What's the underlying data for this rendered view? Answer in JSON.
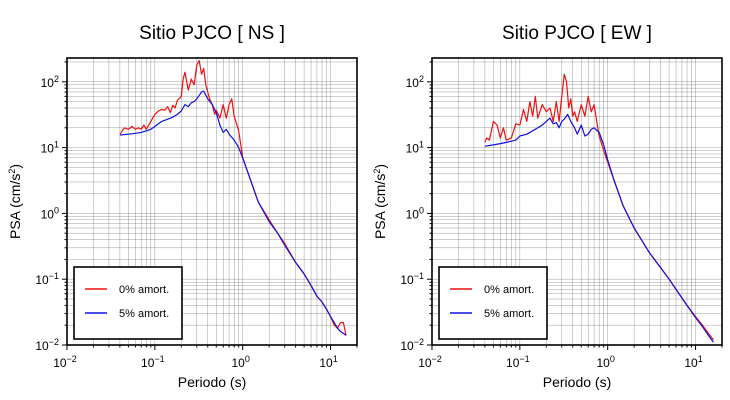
{
  "chart_data": [
    {
      "type": "line",
      "title": "Sitio PJCO [ NS ]",
      "xlabel": "Periodo (s)",
      "ylabel_main": "PSA (cm/s",
      "ylabel_sup": "2",
      "ylabel_tail": ")",
      "x_scale": "log",
      "y_scale": "log",
      "xlim": [
        0.01,
        20
      ],
      "ylim": [
        0.01,
        230
      ],
      "grid": true,
      "legend": "bottom-left",
      "x_ticks": [
        {
          "base": "10",
          "exp": "−2",
          "value": 0.01
        },
        {
          "base": "10",
          "exp": "−1",
          "value": 0.1
        },
        {
          "base": "10",
          "exp": "0",
          "value": 1
        },
        {
          "base": "10",
          "exp": "1",
          "value": 10
        }
      ],
      "y_ticks": [
        {
          "base": "10",
          "exp": "−2",
          "value": 0.01
        },
        {
          "base": "10",
          "exp": "−1",
          "value": 0.1
        },
        {
          "base": "10",
          "exp": "0",
          "value": 1
        },
        {
          "base": "10",
          "exp": "1",
          "value": 10
        },
        {
          "base": "10",
          "exp": "2",
          "value": 100
        }
      ],
      "series": [
        {
          "name": "0% amort.",
          "color": "#ee1111",
          "x": [
            0.04,
            0.045,
            0.05,
            0.055,
            0.06,
            0.065,
            0.07,
            0.075,
            0.08,
            0.09,
            0.1,
            0.11,
            0.12,
            0.13,
            0.14,
            0.15,
            0.16,
            0.17,
            0.18,
            0.2,
            0.21,
            0.22,
            0.24,
            0.26,
            0.28,
            0.3,
            0.32,
            0.34,
            0.36,
            0.38,
            0.4,
            0.42,
            0.45,
            0.48,
            0.5,
            0.55,
            0.6,
            0.65,
            0.7,
            0.75,
            0.8,
            0.9,
            1.0,
            1.2,
            1.5,
            2,
            2.5,
            3,
            4,
            5,
            6,
            7,
            8,
            9,
            10,
            11,
            12,
            13,
            14,
            15
          ],
          "y": [
            16,
            20,
            19,
            21,
            19,
            20,
            19,
            22,
            19,
            25,
            32,
            36,
            38,
            37,
            42,
            34,
            44,
            40,
            52,
            60,
            110,
            140,
            75,
            110,
            90,
            180,
            210,
            130,
            160,
            90,
            70,
            55,
            45,
            32,
            37,
            28,
            45,
            28,
            45,
            55,
            30,
            18,
            7,
            3.5,
            1.5,
            0.8,
            0.5,
            0.35,
            0.18,
            0.12,
            0.08,
            0.055,
            0.045,
            0.035,
            0.027,
            0.02,
            0.018,
            0.022,
            0.022,
            0.014
          ]
        },
        {
          "name": "5% amort.",
          "color": "#1111dd",
          "x": [
            0.04,
            0.05,
            0.06,
            0.07,
            0.08,
            0.09,
            0.1,
            0.12,
            0.14,
            0.16,
            0.18,
            0.2,
            0.22,
            0.24,
            0.26,
            0.28,
            0.3,
            0.32,
            0.34,
            0.36,
            0.4,
            0.45,
            0.5,
            0.55,
            0.6,
            0.65,
            0.7,
            0.8,
            0.9,
            1.0,
            1.2,
            1.5,
            2,
            2.5,
            3,
            4,
            5,
            6,
            7,
            8,
            9,
            10,
            11,
            12,
            13,
            14,
            15
          ],
          "y": [
            15.5,
            16,
            16.5,
            17,
            18,
            19,
            21,
            25,
            27,
            29,
            32,
            36,
            45,
            42,
            48,
            50,
            55,
            62,
            70,
            72,
            55,
            45,
            34,
            22,
            17,
            19,
            16,
            13,
            10,
            7,
            3.5,
            1.5,
            0.75,
            0.5,
            0.33,
            0.18,
            0.12,
            0.08,
            0.055,
            0.045,
            0.035,
            0.027,
            0.022,
            0.018,
            0.016,
            0.015,
            0.014
          ]
        }
      ]
    },
    {
      "type": "line",
      "title": "Sitio PJCO [ EW ]",
      "xlabel": "Periodo (s)",
      "ylabel_main": "PSA (cm/s",
      "ylabel_sup": "2",
      "ylabel_tail": ")",
      "x_scale": "log",
      "y_scale": "log",
      "xlim": [
        0.01,
        20
      ],
      "ylim": [
        0.01,
        230
      ],
      "grid": true,
      "legend": "bottom-left",
      "x_ticks": [
        {
          "base": "10",
          "exp": "−2",
          "value": 0.01
        },
        {
          "base": "10",
          "exp": "−1",
          "value": 0.1
        },
        {
          "base": "10",
          "exp": "0",
          "value": 1
        },
        {
          "base": "10",
          "exp": "1",
          "value": 10
        }
      ],
      "y_ticks": [
        {
          "base": "10",
          "exp": "−2",
          "value": 0.01
        },
        {
          "base": "10",
          "exp": "−1",
          "value": 0.1
        },
        {
          "base": "10",
          "exp": "0",
          "value": 1
        },
        {
          "base": "10",
          "exp": "1",
          "value": 10
        },
        {
          "base": "10",
          "exp": "2",
          "value": 100
        }
      ],
      "series": [
        {
          "name": "0% amort.",
          "color": "#ee1111",
          "x": [
            0.04,
            0.042,
            0.045,
            0.05,
            0.055,
            0.06,
            0.065,
            0.07,
            0.08,
            0.09,
            0.1,
            0.11,
            0.12,
            0.13,
            0.14,
            0.15,
            0.16,
            0.18,
            0.2,
            0.22,
            0.24,
            0.26,
            0.28,
            0.3,
            0.32,
            0.34,
            0.36,
            0.38,
            0.4,
            0.42,
            0.45,
            0.5,
            0.55,
            0.6,
            0.65,
            0.7,
            0.75,
            0.8,
            0.9,
            1.0,
            1.2,
            1.5,
            2,
            3,
            4,
            5,
            6,
            8,
            10,
            12,
            14,
            16
          ],
          "y": [
            12,
            14,
            13,
            25,
            22,
            14,
            20,
            13,
            14,
            23,
            22,
            38,
            25,
            50,
            30,
            60,
            28,
            45,
            35,
            40,
            25,
            50,
            25,
            60,
            130,
            100,
            40,
            55,
            30,
            35,
            25,
            45,
            30,
            60,
            35,
            45,
            25,
            15,
            9,
            6,
            3,
            1.3,
            0.6,
            0.25,
            0.15,
            0.1,
            0.07,
            0.04,
            0.027,
            0.02,
            0.015,
            0.012
          ]
        },
        {
          "name": "5% amort.",
          "color": "#1111dd",
          "x": [
            0.04,
            0.05,
            0.06,
            0.07,
            0.08,
            0.09,
            0.1,
            0.12,
            0.14,
            0.16,
            0.18,
            0.2,
            0.22,
            0.24,
            0.26,
            0.28,
            0.3,
            0.32,
            0.35,
            0.38,
            0.42,
            0.45,
            0.5,
            0.55,
            0.6,
            0.65,
            0.7,
            0.8,
            0.9,
            1.0,
            1.2,
            1.5,
            2,
            3,
            4,
            5,
            6,
            8,
            10,
            12,
            14,
            16
          ],
          "y": [
            10.5,
            11,
            11.5,
            12,
            12.5,
            13,
            15,
            16,
            18,
            20,
            22,
            25,
            28,
            23,
            24,
            20,
            25,
            27,
            32,
            25,
            20,
            16,
            22,
            15,
            16,
            19,
            20,
            17,
            11,
            6.5,
            3,
            1.3,
            0.6,
            0.25,
            0.15,
            0.1,
            0.07,
            0.04,
            0.026,
            0.019,
            0.014,
            0.011
          ]
        }
      ]
    }
  ]
}
